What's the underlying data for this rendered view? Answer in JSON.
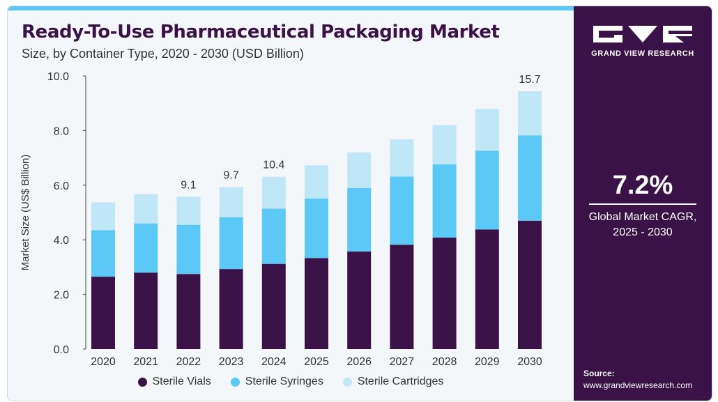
{
  "header": {
    "title": "Ready-To-Use Pharmaceutical Packaging Market",
    "subtitle": "Size, by Container Type, 2020 - 2030 (USD Billion)"
  },
  "brand": {
    "name": "GRAND VIEW RESEARCH",
    "colors": {
      "panel": "#3a1248",
      "accent": "#58c9f4"
    }
  },
  "stat": {
    "cagr": "7.2%",
    "label_line1": "Global Market CAGR,",
    "label_line2": "2025 - 2030"
  },
  "source": {
    "label": "Source:",
    "url": "www.grandviewresearch.com"
  },
  "chart_data": {
    "type": "bar",
    "stacked": true,
    "categories": [
      "2020",
      "2021",
      "2022",
      "2023",
      "2024",
      "2025",
      "2026",
      "2027",
      "2028",
      "2029",
      "2030"
    ],
    "series": [
      {
        "name": "Sterile Vials",
        "color": "#3a1248",
        "values": [
          2.65,
          2.8,
          2.75,
          2.93,
          3.12,
          3.33,
          3.57,
          3.82,
          4.08,
          4.38,
          4.7
        ]
      },
      {
        "name": "Sterile Syringes",
        "color": "#5bc8f5",
        "values": [
          1.7,
          1.8,
          1.8,
          1.9,
          2.02,
          2.18,
          2.33,
          2.5,
          2.68,
          2.88,
          3.12
        ]
      },
      {
        "name": "Sterile Cartridges",
        "color": "#bfe7f8",
        "values": [
          1.02,
          1.07,
          1.03,
          1.1,
          1.17,
          1.22,
          1.3,
          1.36,
          1.44,
          1.53,
          1.62
        ]
      }
    ],
    "data_labels": {
      "2022": "9.1",
      "2023": "9.7",
      "2024": "10.4",
      "2030": "15.7"
    },
    "ylabel": "Market Size (US$ Billion)",
    "xlabel": "",
    "ylim": [
      0,
      10
    ],
    "yticks": [
      "0.0",
      "2.0",
      "4.0",
      "6.0",
      "8.0",
      "10.0"
    ],
    "grid": false,
    "legend_position": "bottom"
  }
}
